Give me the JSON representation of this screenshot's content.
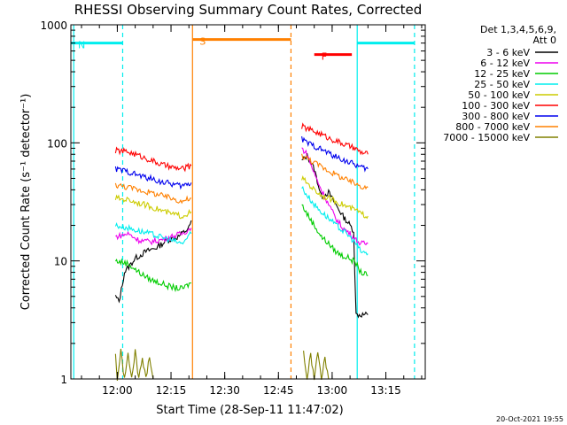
{
  "chart_data": {
    "type": "line",
    "title": "RHESSI Observing Summary Count Rates, Corrected",
    "xlabel": "Start Time (28-Sep-11 11:47:02)",
    "ylabel": "Corrected Count Rate (s⁻¹ detector⁻¹)",
    "yscale": "log",
    "ylim": [
      1,
      1000
    ],
    "xlim": [
      "11:47:02",
      "13:26:00"
    ],
    "x_ticks": [
      "12:00",
      "12:15",
      "12:30",
      "12:45",
      "13:00",
      "13:15"
    ],
    "y_ticks": [
      "1",
      "10",
      "100",
      "1000"
    ],
    "legend_title_lines": [
      "Det 1,3,4,5,6,9,",
      "Att 0"
    ],
    "legend_position": "outside right",
    "footer_stamp": "20-Oct-2021 19:55",
    "series": [
      {
        "name": "3 - 6 keV",
        "color": "#000000",
        "points": [
          [
            "11:59:30",
            5.0
          ],
          [
            "12:00:30",
            4.5
          ],
          [
            "12:02:00",
            8.0
          ],
          [
            "12:05:00",
            10.5
          ],
          [
            "12:08:00",
            12.0
          ],
          [
            "12:11:00",
            13.0
          ],
          [
            "12:14:00",
            15.0
          ],
          [
            "12:17:00",
            16.0
          ],
          [
            "12:20:00",
            19.0
          ],
          [
            "12:20:40",
            22.0
          ],
          [
            null,
            null
          ],
          [
            "12:51:30",
            70.0
          ],
          [
            "12:53:00",
            78.0
          ],
          [
            "12:55:00",
            60.0
          ],
          [
            "12:57:00",
            35.0
          ],
          [
            "12:59:00",
            38.0
          ],
          [
            "13:01:00",
            30.0
          ],
          [
            "13:03:00",
            24.0
          ],
          [
            "13:05:00",
            20.0
          ],
          [
            "13:06:00",
            18.0
          ],
          [
            "13:06:40",
            3.5
          ],
          [
            "13:07:00",
            3.5
          ],
          [
            "13:10:00",
            3.5
          ]
        ]
      },
      {
        "name": "6 - 12 keV",
        "color": "#ee00ee",
        "points": [
          [
            "11:59:30",
            16.0
          ],
          [
            "12:03:00",
            17.0
          ],
          [
            "12:06:00",
            15.0
          ],
          [
            "12:09:00",
            14.5
          ],
          [
            "12:12:00",
            15.0
          ],
          [
            "12:15:00",
            16.0
          ],
          [
            "12:18:00",
            17.0
          ],
          [
            "12:20:40",
            19.0
          ],
          [
            null,
            null
          ],
          [
            "12:51:30",
            90.0
          ],
          [
            "12:53:00",
            80.0
          ],
          [
            "12:55:00",
            55.0
          ],
          [
            "12:57:00",
            40.0
          ],
          [
            "12:59:00",
            30.0
          ],
          [
            "13:01:00",
            23.0
          ],
          [
            "13:03:00",
            19.0
          ],
          [
            "13:05:00",
            17.0
          ],
          [
            "13:06:40",
            15.0
          ],
          [
            "13:08:00",
            14.0
          ],
          [
            "13:10:00",
            14.0
          ]
        ]
      },
      {
        "name": "12 - 25 keV",
        "color": "#00cc00",
        "points": [
          [
            "11:59:30",
            10.0
          ],
          [
            "12:03:00",
            9.5
          ],
          [
            "12:06:00",
            8.0
          ],
          [
            "12:09:00",
            7.0
          ],
          [
            "12:12:00",
            6.5
          ],
          [
            "12:15:00",
            6.0
          ],
          [
            "12:18:00",
            5.8
          ],
          [
            "12:20:40",
            6.5
          ],
          [
            null,
            null
          ],
          [
            "12:51:30",
            30.0
          ],
          [
            "12:53:00",
            25.0
          ],
          [
            "12:55:00",
            20.0
          ],
          [
            "12:57:00",
            16.0
          ],
          [
            "12:59:00",
            14.0
          ],
          [
            "13:01:00",
            12.0
          ],
          [
            "13:03:00",
            11.0
          ],
          [
            "13:05:00",
            10.5
          ],
          [
            "13:06:40",
            9.5
          ],
          [
            "13:08:00",
            8.0
          ],
          [
            "13:10:00",
            7.5
          ]
        ]
      },
      {
        "name": "25 - 50 keV",
        "color": "#00eeee",
        "points": [
          [
            "11:59:30",
            20.0
          ],
          [
            "12:03:00",
            19.0
          ],
          [
            "12:06:00",
            18.0
          ],
          [
            "12:09:00",
            17.0
          ],
          [
            "12:12:00",
            16.0
          ],
          [
            "12:15:00",
            15.0
          ],
          [
            "12:18:00",
            14.0
          ],
          [
            "12:20:40",
            17.0
          ],
          [
            null,
            null
          ],
          [
            "12:51:30",
            42.0
          ],
          [
            "12:53:00",
            36.0
          ],
          [
            "12:55:00",
            30.0
          ],
          [
            "12:57:00",
            26.0
          ],
          [
            "12:59:00",
            23.0
          ],
          [
            "13:01:00",
            20.0
          ],
          [
            "13:03:00",
            18.0
          ],
          [
            "13:05:00",
            16.0
          ],
          [
            "13:06:40",
            14.0
          ],
          [
            "13:08:00",
            12.0
          ],
          [
            "13:10:00",
            11.5
          ]
        ]
      },
      {
        "name": "50 - 100 keV",
        "color": "#cccc00",
        "points": [
          [
            "11:59:30",
            34.0
          ],
          [
            "12:03:00",
            33.0
          ],
          [
            "12:06:00",
            31.0
          ],
          [
            "12:09:00",
            29.0
          ],
          [
            "12:12:00",
            27.0
          ],
          [
            "12:15:00",
            25.0
          ],
          [
            "12:18:00",
            24.0
          ],
          [
            "12:20:40",
            26.0
          ],
          [
            null,
            null
          ],
          [
            "12:51:30",
            50.0
          ],
          [
            "12:53:00",
            46.0
          ],
          [
            "12:55:00",
            40.0
          ],
          [
            "12:57:00",
            36.0
          ],
          [
            "12:59:00",
            34.0
          ],
          [
            "13:01:00",
            32.0
          ],
          [
            "13:03:00",
            30.0
          ],
          [
            "13:05:00",
            28.0
          ],
          [
            "13:06:40",
            27.0
          ],
          [
            "13:08:00",
            25.0
          ],
          [
            "13:10:00",
            24.0
          ]
        ]
      },
      {
        "name": "100 - 300 keV",
        "color": "#ff0000",
        "points": [
          [
            "11:59:30",
            86.0
          ],
          [
            "12:03:00",
            84.0
          ],
          [
            "12:06:00",
            78.0
          ],
          [
            "12:09:00",
            72.0
          ],
          [
            "12:12:00",
            66.0
          ],
          [
            "12:15:00",
            62.0
          ],
          [
            "12:18:00",
            60.0
          ],
          [
            "12:20:40",
            64.0
          ],
          [
            null,
            null
          ],
          [
            "12:51:30",
            138.0
          ],
          [
            "12:53:00",
            132.0
          ],
          [
            "12:55:00",
            125.0
          ],
          [
            "12:57:00",
            118.0
          ],
          [
            "12:59:00",
            110.0
          ],
          [
            "13:01:00",
            104.0
          ],
          [
            "13:03:00",
            98.0
          ],
          [
            "13:05:00",
            93.0
          ],
          [
            "13:06:40",
            88.0
          ],
          [
            "13:08:00",
            83.0
          ],
          [
            "13:10:00",
            80.0
          ]
        ]
      },
      {
        "name": "300 - 800 keV",
        "color": "#0000ee",
        "points": [
          [
            "11:59:30",
            60.0
          ],
          [
            "12:03:00",
            57.0
          ],
          [
            "12:06:00",
            53.0
          ],
          [
            "12:09:00",
            50.0
          ],
          [
            "12:12:00",
            47.0
          ],
          [
            "12:15:00",
            45.0
          ],
          [
            "12:18:00",
            43.0
          ],
          [
            "12:20:40",
            46.0
          ],
          [
            null,
            null
          ],
          [
            "12:51:30",
            108.0
          ],
          [
            "12:53:00",
            100.0
          ],
          [
            "12:55:00",
            94.0
          ],
          [
            "12:57:00",
            88.0
          ],
          [
            "12:59:00",
            82.0
          ],
          [
            "13:01:00",
            76.0
          ],
          [
            "13:03:00",
            72.0
          ],
          [
            "13:05:00",
            68.0
          ],
          [
            "13:06:40",
            65.0
          ],
          [
            "13:08:00",
            62.0
          ],
          [
            "13:10:00",
            60.0
          ]
        ]
      },
      {
        "name": "800 - 7000 keV",
        "color": "#ff8000",
        "points": [
          [
            "11:59:30",
            44.0
          ],
          [
            "12:03:00",
            42.0
          ],
          [
            "12:06:00",
            40.0
          ],
          [
            "12:09:00",
            38.0
          ],
          [
            "12:12:00",
            36.0
          ],
          [
            "12:15:00",
            34.0
          ],
          [
            "12:18:00",
            32.0
          ],
          [
            "12:20:40",
            34.0
          ],
          [
            null,
            null
          ],
          [
            "12:51:30",
            78.0
          ],
          [
            "12:53:00",
            74.0
          ],
          [
            "12:55:00",
            68.0
          ],
          [
            "12:57:00",
            63.0
          ],
          [
            "12:59:00",
            58.0
          ],
          [
            "13:01:00",
            54.0
          ],
          [
            "13:03:00",
            50.0
          ],
          [
            "13:05:00",
            47.0
          ],
          [
            "13:06:40",
            45.0
          ],
          [
            "13:08:00",
            43.0
          ],
          [
            "13:10:00",
            42.0
          ]
        ]
      },
      {
        "name": "7000 - 15000 keV",
        "color": "#808000",
        "points": [
          [
            "11:59:30",
            1.6
          ],
          [
            "12:00:00",
            1.0
          ],
          [
            "12:01:00",
            1.7
          ],
          [
            "12:02:00",
            1.0
          ],
          [
            "12:03:00",
            1.6
          ],
          [
            "12:04:00",
            1.0
          ],
          [
            "12:05:00",
            1.7
          ],
          [
            "12:06:00",
            1.0
          ],
          [
            "12:07:00",
            1.5
          ],
          [
            "12:08:00",
            1.0
          ],
          [
            "12:09:00",
            1.6
          ],
          [
            "12:10:00",
            1.0
          ],
          [
            null,
            null
          ],
          [
            "12:52:00",
            1.7
          ],
          [
            "12:53:00",
            1.0
          ],
          [
            "12:54:00",
            1.6
          ],
          [
            "12:55:00",
            1.0
          ],
          [
            "12:56:00",
            1.7
          ],
          [
            "12:57:00",
            1.0
          ],
          [
            "12:58:00",
            1.5
          ],
          [
            "12:59:00",
            1.0
          ]
        ]
      }
    ],
    "annotations": [
      {
        "text": "N",
        "color": "#00eeee",
        "start": "11:47:02",
        "end": "12:01:30",
        "y": 700
      },
      {
        "text": "S",
        "color": "#ff8000",
        "start": "12:21:00",
        "end": "12:48:30",
        "y": 750
      },
      {
        "text": "F",
        "color": "#ff0000",
        "start": "12:55:00",
        "end": "13:05:30",
        "y": 560
      },
      {
        "text": "",
        "color": "#00eeee",
        "start": "13:07:00",
        "end": "13:23:00",
        "y": 700
      }
    ],
    "vertical_markers": [
      {
        "time": "11:47:50",
        "color": "#00eeee",
        "style": "solid"
      },
      {
        "time": "12:01:30",
        "color": "#00eeee",
        "style": "dashed"
      },
      {
        "time": "12:21:00",
        "color": "#ff8000",
        "style": "solid"
      },
      {
        "time": "12:48:30",
        "color": "#ff8000",
        "style": "dashed"
      },
      {
        "time": "13:07:00",
        "color": "#00eeee",
        "style": "solid"
      },
      {
        "time": "13:23:00",
        "color": "#00eeee",
        "style": "dashed"
      }
    ]
  }
}
